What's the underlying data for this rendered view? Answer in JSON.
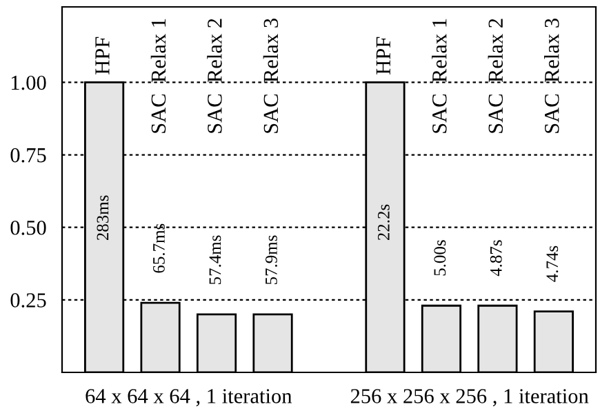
{
  "chart_data": {
    "type": "bar",
    "categories": [
      "HPF",
      "SAC  Relax 1",
      "SAC  Relax 2",
      "SAC  Relax 3",
      null,
      "HPF",
      "SAC  Relax 1",
      "SAC  Relax 2",
      "SAC  Relax 3"
    ],
    "values": [
      1.0,
      0.24,
      0.2,
      0.2,
      null,
      1.0,
      0.23,
      0.23,
      0.21
    ],
    "color": "#e5e5e5",
    "ylim": [
      0,
      1.26
    ],
    "yticks": [
      0.25,
      {
        "value": 0.5,
        "label": "0.50"
      },
      0.75,
      {
        "value": 1,
        "label": "1.00"
      }
    ],
    "grid": "y",
    "line_style": "dotted",
    "annotations": [
      "64 x 64 x 64 , 1 iteration",
      "256 x 256 x 256 , 1 iteration",
      "283ms",
      "65.7ms",
      "57.4ms",
      "57.9ms",
      "22.2s",
      "5.00s",
      "4.87s",
      "4.74s"
    ]
  }
}
